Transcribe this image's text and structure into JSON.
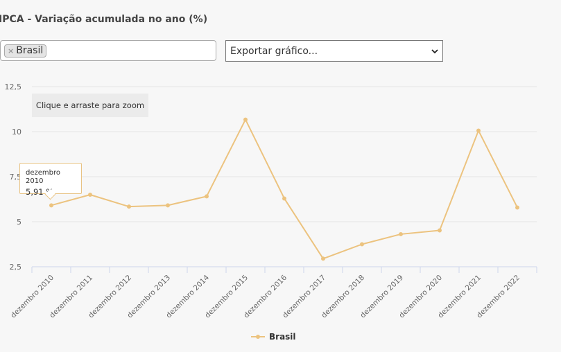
{
  "header": {
    "title": "IPCA - Variação acumulada no ano (%)"
  },
  "filter": {
    "selected_tag": "Brasil",
    "remove_symbol": "×"
  },
  "export_select": {
    "selected": "Exportar gráfico..."
  },
  "zoom_hint": "Clique e arraste para zoom",
  "tooltip": {
    "date": "dezembro 2010",
    "value": "5,91 %"
  },
  "colors": {
    "series": "#ecc37f",
    "background": "#f7f7f7",
    "grid": "#e6e6e6",
    "axis": "#ccd6eb"
  },
  "chart_data": {
    "type": "line",
    "title": "IPCA - Variação acumulada no ano (%)",
    "xlabel": "",
    "ylabel": "",
    "categories": [
      "dezembro 2010",
      "dezembro 2011",
      "dezembro 2012",
      "dezembro 2013",
      "dezembro 2014",
      "dezembro 2015",
      "dezembro 2016",
      "dezembro 2017",
      "dezembro 2018",
      "dezembro 2019",
      "dezembro 2020",
      "dezembro 2021",
      "dezembro 2022"
    ],
    "series": [
      {
        "name": "Brasil",
        "values": [
          5.91,
          6.5,
          5.84,
          5.91,
          6.41,
          10.67,
          6.29,
          2.95,
          3.75,
          4.31,
          4.52,
          10.06,
          5.79
        ]
      }
    ],
    "ylim": [
      2.5,
      12.5
    ],
    "yticks": [
      2.5,
      5,
      7.5,
      10,
      12.5
    ],
    "ytick_labels": [
      "2,5",
      "5",
      "7,5",
      "10",
      "12,5"
    ],
    "grid": true,
    "legend": "bottom-center"
  }
}
